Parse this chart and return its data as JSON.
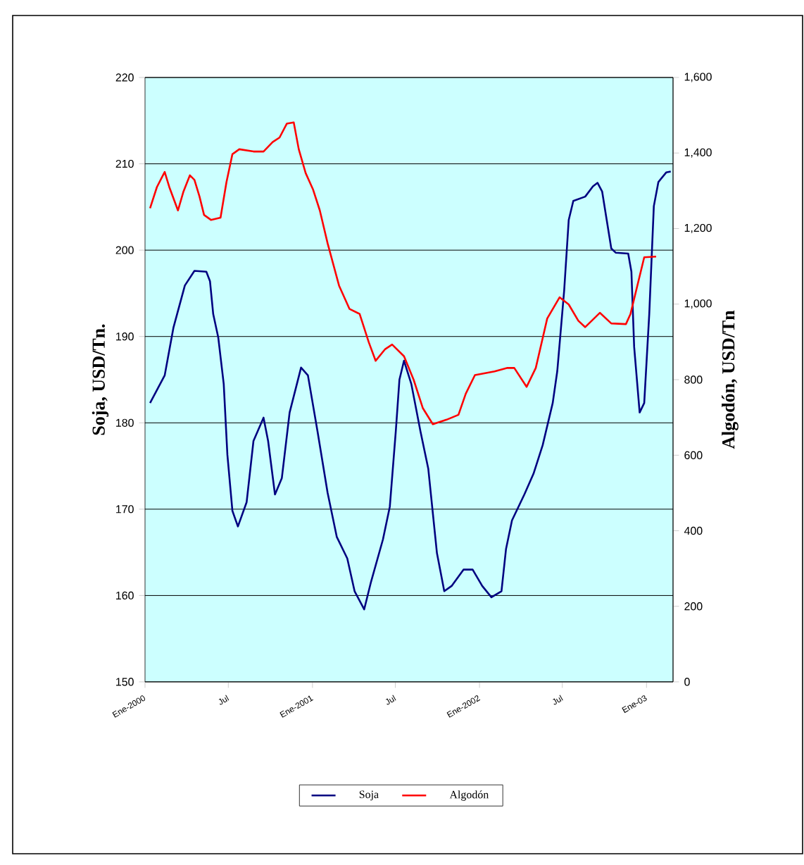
{
  "chart_data": {
    "type": "line",
    "xlim": [
      "2000-01-01",
      "2003-02-28"
    ],
    "xticks": [
      {
        "value": "2000-01-01",
        "label": "Ene-2000"
      },
      {
        "value": "2000-07-01",
        "label": "Jul"
      },
      {
        "value": "2001-01-01",
        "label": "Ene-2001"
      },
      {
        "value": "2001-07-01",
        "label": "Jul"
      },
      {
        "value": "2002-01-01",
        "label": "Ene-2002"
      },
      {
        "value": "2002-07-01",
        "label": "Jul"
      },
      {
        "value": "2003-01-01",
        "label": "Ene-03"
      }
    ],
    "ylim": [
      150,
      220
    ],
    "yticks": [
      150,
      160,
      170,
      180,
      190,
      200,
      210,
      220
    ],
    "y2lim": [
      0,
      1600
    ],
    "y2ticks": [
      0,
      200,
      400,
      600,
      800,
      {
        "value": 1000,
        "label": "1,000"
      },
      {
        "value": 1200,
        "label": "1,200"
      },
      {
        "value": 1400,
        "label": "1,400"
      },
      {
        "value": 1600,
        "label": "1,600"
      }
    ],
    "ylabel": "Soja, USD/Tn.",
    "y2label": "Algodón, USD/Tn",
    "grid": "y",
    "legend": "bottom",
    "series": [
      {
        "name": "Soja",
        "color": "#000080",
        "x": [
          "2000-01-12",
          "2000-02-13",
          "2000-03-03",
          "2000-03-28",
          "2000-04-18",
          "2000-05-14",
          "2000-05-22",
          "2000-05-29",
          "2000-06-09",
          "2000-06-21",
          "2000-06-29",
          "2000-07-10",
          "2000-07-22",
          "2000-08-10",
          "2000-08-25",
          "2000-09-16",
          "2000-09-26",
          "2000-10-11",
          "2000-10-26",
          "2000-11-12",
          "2000-12-07",
          "2000-12-22",
          "2001-01-12",
          "2001-02-03",
          "2001-02-23",
          "2001-03-18",
          "2001-04-03",
          "2001-04-24",
          "2001-05-09",
          "2001-06-04",
          "2001-06-19",
          "2001-07-02",
          "2001-07-10",
          "2001-07-20",
          "2001-08-05",
          "2001-08-25",
          "2001-09-11",
          "2001-09-30",
          "2001-10-16",
          "2001-11-01",
          "2001-11-27",
          "2001-12-17",
          "2002-01-07",
          "2002-01-27",
          "2002-02-18",
          "2002-02-28",
          "2002-03-13",
          "2002-04-09",
          "2002-04-29",
          "2002-05-19",
          "2002-06-10",
          "2002-06-20",
          "2002-07-05",
          "2002-07-15",
          "2002-07-25",
          "2002-08-20",
          "2002-09-06",
          "2002-09-16",
          "2002-09-26",
          "2002-10-06",
          "2002-10-16",
          "2002-10-26",
          "2002-11-22",
          "2002-11-29",
          "2002-12-05",
          "2002-12-17",
          "2002-12-27",
          "2003-01-07",
          "2003-01-17",
          "2003-01-27",
          "2003-02-13",
          "2003-02-23"
        ],
        "values": [
          182.3,
          185.5,
          191.0,
          195.9,
          197.6,
          197.5,
          196.4,
          192.6,
          189.9,
          184.5,
          176.3,
          169.8,
          168.0,
          170.8,
          177.9,
          180.6,
          177.9,
          171.7,
          173.6,
          181.2,
          186.4,
          185.5,
          179.0,
          171.9,
          166.8,
          164.3,
          160.5,
          158.4,
          161.6,
          166.5,
          170.3,
          179.0,
          185.0,
          187.2,
          184.5,
          179.0,
          174.7,
          164.9,
          160.5,
          161.1,
          163.0,
          163.0,
          161.1,
          159.8,
          160.5,
          165.4,
          168.7,
          171.7,
          174.1,
          177.4,
          182.3,
          186.0,
          195.3,
          203.5,
          205.7,
          206.2,
          207.4,
          207.8,
          206.8,
          203.5,
          200.2,
          199.7,
          199.6,
          197.5,
          188.8,
          181.2,
          182.3,
          192.6,
          205.1,
          207.9,
          209.0,
          209.1
        ]
      },
      {
        "name": "Algodón",
        "color": "#ff0000",
        "axis": "y2",
        "x": [
          "2000-01-12",
          "2000-01-27",
          "2000-02-13",
          "2000-02-23",
          "2000-03-13",
          "2000-03-25",
          "2000-04-08",
          "2000-04-18",
          "2000-04-29",
          "2000-05-09",
          "2000-05-24",
          "2000-06-14",
          "2000-06-27",
          "2000-07-10",
          "2000-07-25",
          "2000-08-25",
          "2000-09-16",
          "2000-10-06",
          "2000-10-21",
          "2000-11-06",
          "2000-11-21",
          "2000-12-02",
          "2000-12-17",
          "2001-01-02",
          "2001-01-17",
          "2001-02-03",
          "2001-02-28",
          "2001-03-23",
          "2001-04-14",
          "2001-05-04",
          "2001-05-19",
          "2001-06-09",
          "2001-06-24",
          "2001-07-20",
          "2001-08-10",
          "2001-08-30",
          "2001-09-21",
          "2001-10-21",
          "2001-11-16",
          "2001-12-02",
          "2001-12-22",
          "2002-02-03",
          "2002-03-03",
          "2002-03-18",
          "2002-04-14",
          "2002-05-04",
          "2002-05-29",
          "2002-06-25",
          "2002-07-15",
          "2002-08-05",
          "2002-08-20",
          "2002-09-21",
          "2002-10-16",
          "2002-11-17",
          "2002-11-27",
          "2002-12-17",
          "2002-12-27",
          "2003-01-22"
        ],
        "values": [
          1254,
          1310,
          1350,
          1310,
          1248,
          1298,
          1341,
          1329,
          1285,
          1236,
          1223,
          1229,
          1323,
          1397,
          1410,
          1404,
          1404,
          1429,
          1441,
          1478,
          1481,
          1410,
          1347,
          1304,
          1248,
          1161,
          1049,
          987,
          974,
          899,
          850,
          881,
          893,
          862,
          800,
          725,
          682,
          694,
          707,
          763,
          812,
          822,
          831,
          831,
          781,
          831,
          962,
          1018,
          999,
          956,
          939,
          977,
          949,
          947,
          974,
          1074,
          1124,
          1126
        ]
      }
    ]
  }
}
